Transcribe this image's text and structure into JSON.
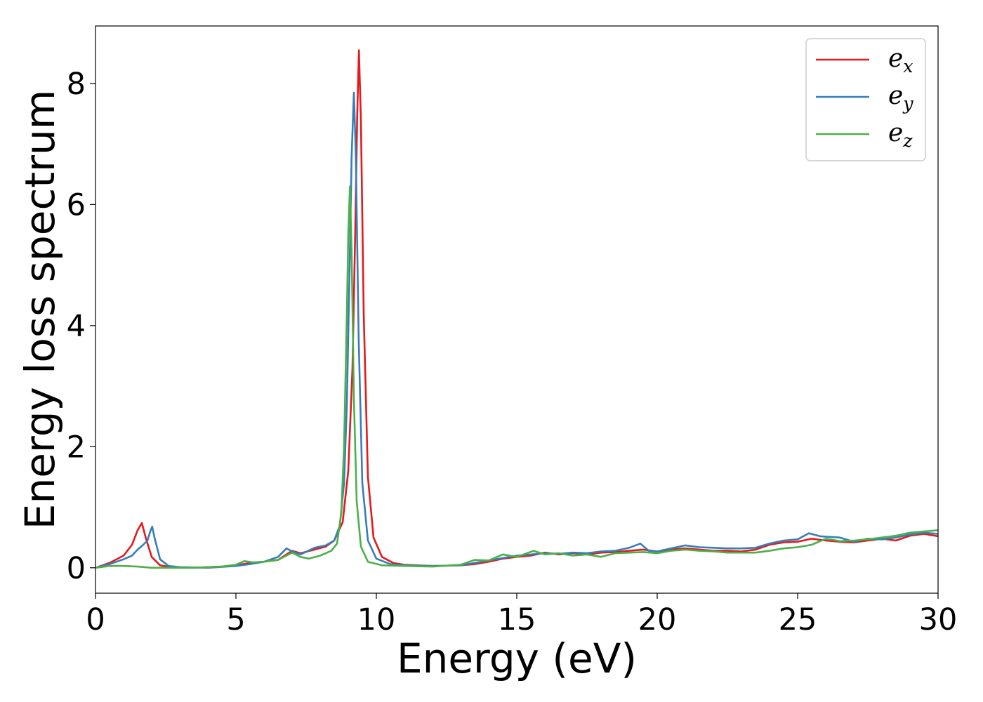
{
  "chart_data": {
    "type": "line",
    "title": "",
    "xlabel": "Energy (eV)",
    "ylabel": "Energy loss spectrum",
    "xlim": [
      0,
      30
    ],
    "ylim": [
      -0.42,
      8.95
    ],
    "xticks": [
      0,
      5,
      10,
      15,
      20,
      25,
      30
    ],
    "yticks": [
      0,
      2,
      4,
      6,
      8
    ],
    "grid": false,
    "legend_position": "top-right",
    "series": [
      {
        "name": "e",
        "subscript": "x",
        "color": "#e41a1c",
        "points": [
          [
            0,
            0
          ],
          [
            0.5,
            0.08
          ],
          [
            1.0,
            0.2
          ],
          [
            1.3,
            0.38
          ],
          [
            1.5,
            0.62
          ],
          [
            1.65,
            0.74
          ],
          [
            1.8,
            0.48
          ],
          [
            2.0,
            0.18
          ],
          [
            2.3,
            0.04
          ],
          [
            2.7,
            0.01
          ],
          [
            3.5,
            0.0
          ],
          [
            4.5,
            0.02
          ],
          [
            5.0,
            0.04
          ],
          [
            5.5,
            0.08
          ],
          [
            6.0,
            0.1
          ],
          [
            6.5,
            0.13
          ],
          [
            6.8,
            0.22
          ],
          [
            7.0,
            0.28
          ],
          [
            7.3,
            0.24
          ],
          [
            7.8,
            0.3
          ],
          [
            8.2,
            0.35
          ],
          [
            8.5,
            0.45
          ],
          [
            8.8,
            0.75
          ],
          [
            9.0,
            1.6
          ],
          [
            9.15,
            3.3
          ],
          [
            9.25,
            5.6
          ],
          [
            9.32,
            7.5
          ],
          [
            9.38,
            8.55
          ],
          [
            9.45,
            7.4
          ],
          [
            9.55,
            4.2
          ],
          [
            9.7,
            1.5
          ],
          [
            9.9,
            0.5
          ],
          [
            10.2,
            0.18
          ],
          [
            10.6,
            0.08
          ],
          [
            11,
            0.05
          ],
          [
            12,
            0.03
          ],
          [
            13,
            0.04
          ],
          [
            13.5,
            0.06
          ],
          [
            14,
            0.1
          ],
          [
            14.5,
            0.15
          ],
          [
            15,
            0.18
          ],
          [
            15.5,
            0.2
          ],
          [
            16,
            0.25
          ],
          [
            16.5,
            0.22
          ],
          [
            17,
            0.24
          ],
          [
            17.5,
            0.22
          ],
          [
            18,
            0.25
          ],
          [
            18.5,
            0.26
          ],
          [
            19,
            0.28
          ],
          [
            19.5,
            0.3
          ],
          [
            20,
            0.27
          ],
          [
            20.5,
            0.3
          ],
          [
            21,
            0.32
          ],
          [
            21.5,
            0.3
          ],
          [
            22,
            0.28
          ],
          [
            22.5,
            0.28
          ],
          [
            23,
            0.27
          ],
          [
            23.5,
            0.3
          ],
          [
            24,
            0.38
          ],
          [
            24.5,
            0.42
          ],
          [
            25,
            0.43
          ],
          [
            25.5,
            0.48
          ],
          [
            26,
            0.45
          ],
          [
            26.5,
            0.43
          ],
          [
            27,
            0.42
          ],
          [
            27.5,
            0.45
          ],
          [
            28,
            0.48
          ],
          [
            28.5,
            0.45
          ],
          [
            29,
            0.53
          ],
          [
            29.5,
            0.56
          ],
          [
            30,
            0.52
          ]
        ]
      },
      {
        "name": "e",
        "subscript": "y",
        "color": "#377eb8",
        "points": [
          [
            0,
            0
          ],
          [
            0.5,
            0.06
          ],
          [
            1.0,
            0.14
          ],
          [
            1.3,
            0.2
          ],
          [
            1.5,
            0.3
          ],
          [
            1.7,
            0.38
          ],
          [
            1.85,
            0.45
          ],
          [
            1.95,
            0.6
          ],
          [
            2.02,
            0.68
          ],
          [
            2.1,
            0.5
          ],
          [
            2.3,
            0.14
          ],
          [
            2.6,
            0.03
          ],
          [
            3.0,
            0.01
          ],
          [
            4.0,
            0.0
          ],
          [
            5.0,
            0.03
          ],
          [
            5.5,
            0.06
          ],
          [
            6.0,
            0.1
          ],
          [
            6.5,
            0.18
          ],
          [
            6.8,
            0.32
          ],
          [
            7.0,
            0.27
          ],
          [
            7.3,
            0.22
          ],
          [
            7.8,
            0.33
          ],
          [
            8.2,
            0.37
          ],
          [
            8.5,
            0.45
          ],
          [
            8.7,
            0.7
          ],
          [
            8.85,
            1.4
          ],
          [
            8.95,
            2.7
          ],
          [
            9.05,
            5.0
          ],
          [
            9.12,
            6.8
          ],
          [
            9.2,
            7.85
          ],
          [
            9.27,
            6.8
          ],
          [
            9.37,
            3.8
          ],
          [
            9.5,
            1.4
          ],
          [
            9.7,
            0.45
          ],
          [
            10.0,
            0.15
          ],
          [
            10.5,
            0.06
          ],
          [
            11,
            0.04
          ],
          [
            12,
            0.03
          ],
          [
            13,
            0.04
          ],
          [
            13.5,
            0.08
          ],
          [
            14,
            0.12
          ],
          [
            14.5,
            0.16
          ],
          [
            15,
            0.2
          ],
          [
            15.5,
            0.22
          ],
          [
            16,
            0.24
          ],
          [
            16.5,
            0.23
          ],
          [
            17,
            0.25
          ],
          [
            17.5,
            0.24
          ],
          [
            18,
            0.27
          ],
          [
            18.5,
            0.28
          ],
          [
            19,
            0.33
          ],
          [
            19.4,
            0.4
          ],
          [
            19.7,
            0.28
          ],
          [
            20,
            0.27
          ],
          [
            20.5,
            0.32
          ],
          [
            21,
            0.37
          ],
          [
            21.5,
            0.34
          ],
          [
            22,
            0.33
          ],
          [
            22.5,
            0.32
          ],
          [
            23,
            0.32
          ],
          [
            23.5,
            0.33
          ],
          [
            24,
            0.4
          ],
          [
            24.5,
            0.45
          ],
          [
            25,
            0.47
          ],
          [
            25.4,
            0.57
          ],
          [
            25.8,
            0.52
          ],
          [
            26.5,
            0.5
          ],
          [
            27,
            0.43
          ],
          [
            27.5,
            0.48
          ],
          [
            28,
            0.47
          ],
          [
            28.5,
            0.5
          ],
          [
            29,
            0.55
          ],
          [
            29.5,
            0.58
          ],
          [
            30,
            0.56
          ]
        ]
      },
      {
        "name": "e",
        "subscript": "z",
        "color": "#4daf4a",
        "points": [
          [
            0,
            0
          ],
          [
            0.5,
            0.03
          ],
          [
            1.0,
            0.03
          ],
          [
            1.5,
            0.02
          ],
          [
            2.0,
            0.0
          ],
          [
            2.5,
            0.0
          ],
          [
            3.5,
            0.0
          ],
          [
            4.5,
            0.02
          ],
          [
            5.0,
            0.05
          ],
          [
            5.3,
            0.11
          ],
          [
            5.6,
            0.09
          ],
          [
            6.0,
            0.1
          ],
          [
            6.5,
            0.13
          ],
          [
            6.8,
            0.2
          ],
          [
            7.0,
            0.25
          ],
          [
            7.3,
            0.18
          ],
          [
            7.6,
            0.15
          ],
          [
            8.0,
            0.2
          ],
          [
            8.4,
            0.28
          ],
          [
            8.6,
            0.4
          ],
          [
            8.75,
            0.9
          ],
          [
            8.85,
            2.0
          ],
          [
            8.95,
            4.2
          ],
          [
            9.0,
            5.5
          ],
          [
            9.06,
            6.3
          ],
          [
            9.12,
            5.2
          ],
          [
            9.2,
            2.8
          ],
          [
            9.3,
            1.1
          ],
          [
            9.45,
            0.35
          ],
          [
            9.7,
            0.1
          ],
          [
            10.2,
            0.04
          ],
          [
            11,
            0.03
          ],
          [
            12,
            0.02
          ],
          [
            13,
            0.05
          ],
          [
            13.5,
            0.13
          ],
          [
            14,
            0.12
          ],
          [
            14.5,
            0.22
          ],
          [
            15,
            0.18
          ],
          [
            15.6,
            0.28
          ],
          [
            16,
            0.22
          ],
          [
            16.5,
            0.24
          ],
          [
            17,
            0.2
          ],
          [
            17.5,
            0.22
          ],
          [
            18,
            0.18
          ],
          [
            18.5,
            0.24
          ],
          [
            19,
            0.25
          ],
          [
            19.5,
            0.26
          ],
          [
            20,
            0.24
          ],
          [
            20.5,
            0.28
          ],
          [
            21,
            0.3
          ],
          [
            21.5,
            0.28
          ],
          [
            22,
            0.27
          ],
          [
            22.5,
            0.25
          ],
          [
            23,
            0.25
          ],
          [
            23.5,
            0.25
          ],
          [
            24,
            0.28
          ],
          [
            24.5,
            0.32
          ],
          [
            25,
            0.34
          ],
          [
            25.5,
            0.38
          ],
          [
            26,
            0.48
          ],
          [
            26.5,
            0.44
          ],
          [
            27,
            0.45
          ],
          [
            27.5,
            0.47
          ],
          [
            28,
            0.5
          ],
          [
            28.5,
            0.53
          ],
          [
            29,
            0.58
          ],
          [
            29.5,
            0.6
          ],
          [
            30,
            0.62
          ]
        ]
      }
    ]
  }
}
